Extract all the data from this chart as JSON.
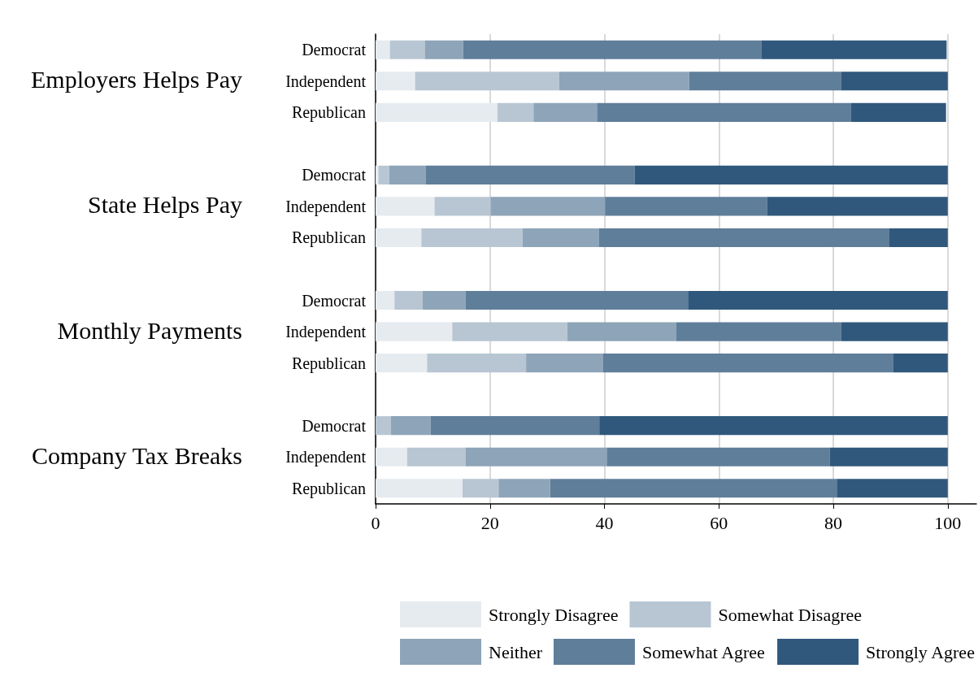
{
  "chart_data": {
    "type": "bar",
    "orientation": "horizontal",
    "stacked": true,
    "categories": [
      "Democrat",
      "Independent",
      "Republican",
      null,
      "Democrat",
      "Independent",
      "Republican",
      null,
      "Democrat",
      "Independent",
      "Republican",
      null,
      "Democrat",
      "Independent",
      "Republican"
    ],
    "annotations": [
      "Employers Helps Pay",
      "State Helps Pay",
      "Monthly Payments",
      "Company Tax Breaks"
    ],
    "series": [
      {
        "name": "Strongly Disagree",
        "color": "#e6ebf0",
        "values": [
          2.5,
          6.9,
          21.3,
          null,
          0.5,
          10.3,
          8.0,
          null,
          3.3,
          13.4,
          9.0,
          null,
          0,
          5.5,
          15.2
        ]
      },
      {
        "name": "Somewhat Disagree",
        "color": "#b8c6d3",
        "values": [
          6.1,
          25.2,
          6.3,
          null,
          1.9,
          9.8,
          17.7,
          null,
          4.9,
          20.1,
          17.3,
          null,
          2.7,
          10.2,
          6.3
        ]
      },
      {
        "name": "Neither",
        "color": "#8ea4b8",
        "values": [
          6.7,
          22.7,
          11.1,
          null,
          6.4,
          20.0,
          13.3,
          null,
          7.5,
          19.0,
          13.4,
          null,
          6.9,
          24.7,
          9.0
        ]
      },
      {
        "name": "Somewhat Agree",
        "color": "#5f7e9a",
        "values": [
          52.1,
          26.6,
          44.4,
          null,
          36.5,
          28.3,
          50.8,
          null,
          38.9,
          28.9,
          50.8,
          null,
          29.5,
          39.0,
          50.1
        ]
      },
      {
        "name": "Strongly Agree",
        "color": "#30587c",
        "values": [
          32.4,
          18.6,
          16.6,
          null,
          54.7,
          31.6,
          10.2,
          null,
          45.4,
          18.6,
          9.5,
          null,
          60.9,
          20.6,
          19.4
        ]
      }
    ],
    "xlim": [
      0,
      105
    ],
    "xticks": [
      0,
      20,
      40,
      60,
      80,
      100
    ],
    "grid": "x",
    "legend": "bottom"
  }
}
